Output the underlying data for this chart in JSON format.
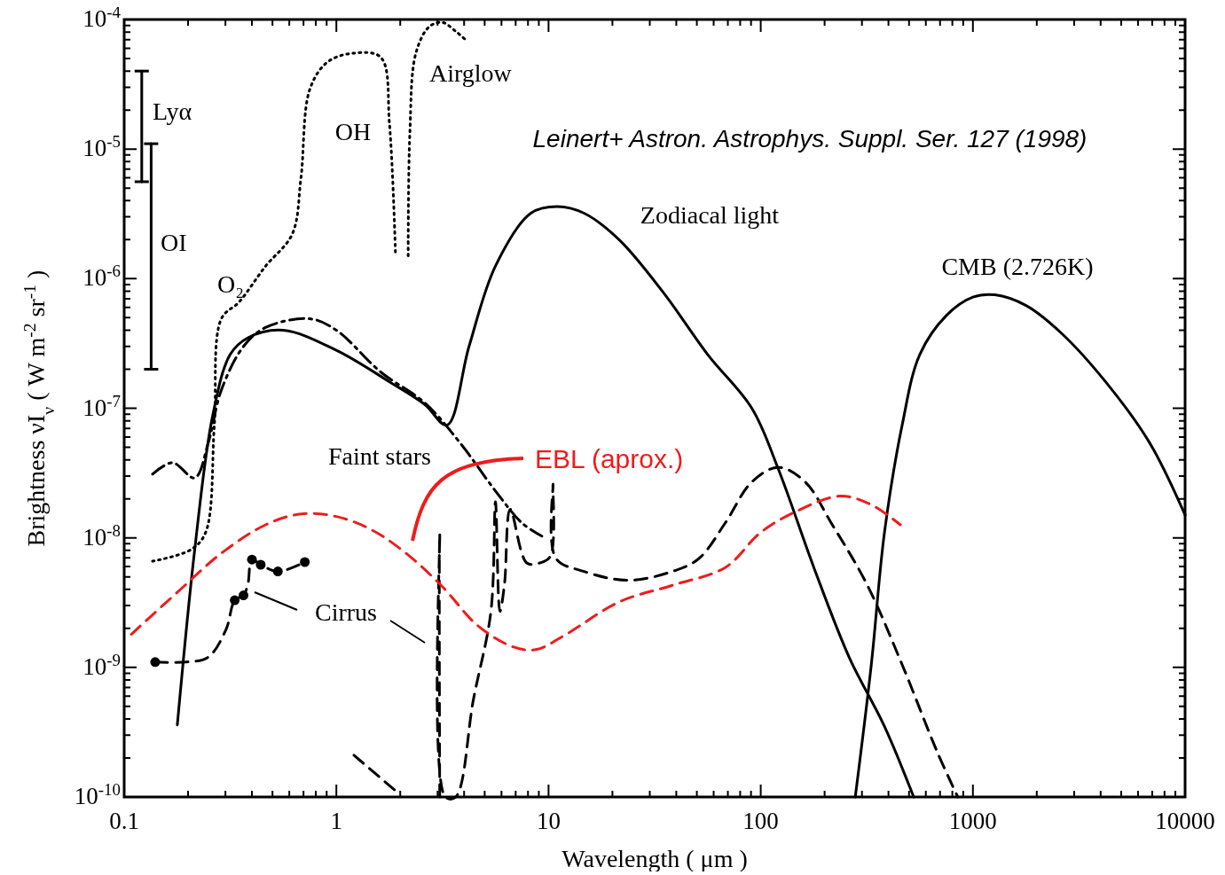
{
  "chart_data": {
    "type": "line",
    "xlabel": "Wavelength ( μm )",
    "ylabel": "Brightness νI$_{ν}$ ( W m$^{-2}$ sr$^{-1}$ )",
    "log": "xy",
    "xlim": [
      0.1,
      10000
    ],
    "ylim": [
      1e-10,
      0.0001
    ],
    "xticks": [
      0.1,
      1,
      10,
      100,
      1000,
      10000
    ],
    "yticks": [
      {
        "value": 1e-10,
        "label": "10$^{-10}$"
      },
      {
        "value": 1e-09,
        "label": "10$^{-9}$"
      },
      {
        "value": 1e-08,
        "label": "10$^{-8}$"
      },
      {
        "value": 1e-07,
        "label": "10$^{-7}$"
      },
      {
        "value": 1e-06,
        "label": "10$^{-6}$"
      },
      {
        "value": 1e-05,
        "label": "10$^{-5}$"
      },
      {
        "value": 0.0001,
        "label": "10$^{-4}$"
      }
    ],
    "annotations": [
      "OH",
      "O₂",
      "Leinert+  Astron. Astrophys. Suppl. Ser. 127 (1998)"
    ],
    "series": [
      {
        "name": "Zodiacal light",
        "color": "#000000",
        "line_style": "solid",
        "x": [
          0.178,
          0.215,
          0.261,
          0.316,
          0.383,
          0.562,
          1,
          1.78,
          2.61,
          3.32,
          4.22,
          5.62,
          8.25,
          11,
          14.7,
          21.5,
          34.8,
          56.2,
          90.8,
          121,
          178,
          261,
          383,
          526
        ],
        "values": [
          3.6e-10,
          8.1e-09,
          8.7e-08,
          2.6e-07,
          3.5e-07,
          4e-07,
          2.8e-07,
          1.6e-07,
          1.07e-07,
          7.4e-08,
          3e-07,
          1.25e-06,
          3.2e-06,
          3.6e-06,
          3.2e-06,
          2e-06,
          7.8e-07,
          2.6e-07,
          1e-07,
          3.4e-08,
          5.9e-09,
          1.2e-09,
          3.5e-10,
          1e-10
        ]
      },
      {
        "name": "CMB (2.726K)",
        "color": "#000000",
        "line_style": "solid",
        "x": [
          279,
          332,
          383,
          464,
          562,
          750,
          1000,
          1270,
          1780,
          2610,
          4220,
          6810,
          10000
        ],
        "values": [
          1e-10,
          1.05e-09,
          1.1e-08,
          7.4e-08,
          2.6e-07,
          5.2e-07,
          7.2e-07,
          7.5e-07,
          6.2e-07,
          3.8e-07,
          1.6e-07,
          5.4e-08,
          1.5e-08
        ]
      },
      {
        "name": "Faint stars",
        "color": "#000000",
        "line_style": "dashdot",
        "x": [
          0.136,
          0.169,
          0.215,
          0.249,
          0.287,
          0.365,
          0.464,
          0.75,
          1,
          1.62,
          2.61,
          3.83,
          5.62,
          7.5,
          9.3
        ],
        "values": [
          3.1e-08,
          3.8e-08,
          2.9e-08,
          5.4e-08,
          1.38e-07,
          3e-07,
          4.2e-07,
          4.9e-07,
          4e-07,
          1.9e-07,
          1.1e-07,
          5.4e-08,
          2.3e-08,
          1.3e-08,
          1.03e-08
        ]
      },
      {
        "name": "Airglow",
        "color": "#000000",
        "line_style": "dotted",
        "x": [
          0.136,
          0.206,
          0.242,
          0.266,
          0.287,
          0.348,
          0.464,
          0.619,
          0.681,
          0.75,
          0.909,
          1.21,
          1.62,
          1.78,
          1.9,
          2.04,
          2.18,
          2.22,
          2.37,
          2.74,
          3.16,
          3.65,
          4.14
        ],
        "values": [
          6.6e-09,
          8.1e-09,
          1.1e-08,
          7.4e-08,
          4.9e-07,
          6.6e-07,
          1.25e-06,
          2.2e-06,
          6e-06,
          2.9e-05,
          4.7e-05,
          5.5e-05,
          5.1e-05,
          1.55e-05,
          1.5e-06,
          null,
          1.5e-06,
          1.33e-05,
          5.5e-05,
          8.8e-05,
          9.5e-05,
          8.1e-05,
          6.8e-05
        ]
      },
      {
        "name": "Cirrus",
        "color": "#000000",
        "line_style": "dashed",
        "x": [
          0.14,
          0.196,
          0.249,
          0.302,
          0.332,
          0.365,
          0.383,
          0.4,
          0.44,
          0.53,
          0.71,
          0.9,
          1.21,
          1.96,
          2.5,
          3.07,
          3.07,
          3.26,
          3.65,
          4.42,
          5.35,
          5.62,
          5.9,
          6.2,
          6.6,
          7.9,
          9.1,
          10.2,
          10.5,
          10.8,
          14.7,
          23.7,
          38.3,
          51,
          68,
          90.8,
          121,
          162,
          215,
          316,
          464,
          681,
          849
        ],
        "values": [
          1.1e-09,
          1.1e-09,
          1.2e-09,
          1.96e-09,
          3.3e-09,
          3.6e-09,
          4.4e-09,
          6.8e-09,
          6.2e-09,
          5.5e-09,
          6.5e-09,
          null,
          2.1e-10,
          1.07e-10,
          null,
          1e-10,
          1.08e-08,
          1e-10,
          1e-10,
          5.6e-10,
          2.7e-09,
          1.9e-08,
          2.7e-09,
          4.4e-09,
          1.66e-08,
          6.4e-09,
          6.4e-09,
          7.2e-09,
          2.6e-08,
          7e-09,
          5.5e-09,
          4.7e-09,
          5.5e-09,
          6.9e-09,
          1.3e-08,
          2.7e-08,
          3.5e-08,
          2.7e-08,
          1.3e-08,
          4.4e-09,
          1.05e-09,
          2.2e-10,
          1e-10
        ]
      },
      {
        "type": "scatter",
        "marker": "circle",
        "color": "#000000",
        "x": [
          0.14,
          0.332,
          0.365,
          0.4,
          0.44,
          0.53,
          0.71
        ],
        "values": [
          1.1e-09,
          3.3e-09,
          3.6e-09,
          6.8e-09,
          6.2e-09,
          5.5e-09,
          6.5e-09
        ]
      },
      {
        "name": "EBL (aprox.)",
        "color": "#ee1c1c",
        "line_style": "dashed",
        "x": [
          0.108,
          0.178,
          0.287,
          0.464,
          0.681,
          1,
          1.47,
          2.15,
          3.16,
          4.64,
          6.81,
          8.7,
          12.1,
          21.5,
          38.3,
          68,
          100,
          147,
          237,
          332,
          455
        ],
        "values": [
          1.8e-09,
          3.8e-09,
          7.6e-09,
          1.26e-08,
          1.53e-08,
          1.46e-08,
          1.15e-08,
          7.5e-09,
          4.2e-09,
          2.1e-09,
          1.44e-09,
          1.37e-09,
          1.8e-09,
          3.2e-09,
          4.3e-09,
          5.9e-09,
          1.1e-08,
          1.6e-08,
          2.1e-08,
          1.8e-08,
          1.26e-08
        ]
      },
      {
        "name": "Lyα",
        "color": "#000000",
        "line_style": "solid",
        "x": [
          0.121,
          0.121
        ],
        "values": [
          4e-05,
          5.6e-06
        ]
      },
      {
        "name": "OI",
        "color": "#000000",
        "line_style": "solid",
        "x": [
          0.134,
          0.134
        ],
        "values": [
          1.1e-05,
          2e-07
        ]
      }
    ]
  }
}
